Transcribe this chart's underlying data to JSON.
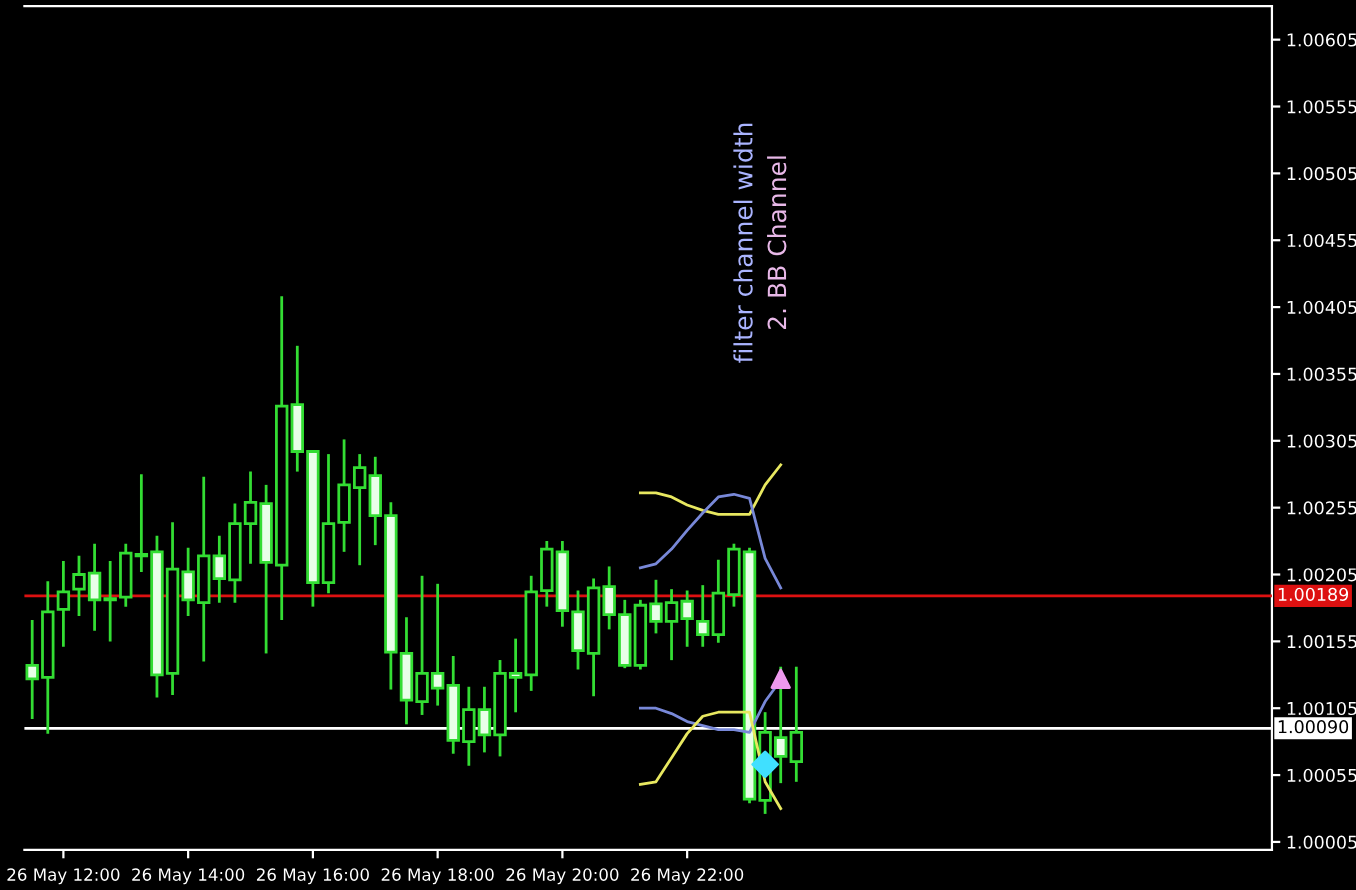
{
  "chart_data": {
    "type": "candlestick",
    "categories": [
      null,
      null,
      "26 May 12:00",
      null,
      null,
      null,
      null,
      null,
      null,
      null,
      "26 May 14:00",
      null,
      null,
      null,
      null,
      null,
      null,
      null,
      "26 May 16:00",
      null,
      null,
      null,
      null,
      null,
      null,
      null,
      "26 May 18:00",
      null,
      null,
      null,
      null,
      null,
      null,
      null,
      "26 May 20:00",
      null,
      null,
      null,
      null,
      null,
      null,
      null,
      "26 May 22:00",
      null,
      null,
      null,
      null,
      null,
      null,
      null,
      null,
      null,
      null,
      null,
      null,
      null,
      null,
      null,
      null,
      null,
      null,
      null,
      null,
      null,
      null,
      null,
      null,
      null,
      null,
      null,
      null,
      null,
      null,
      null,
      null,
      null,
      null,
      null,
      null,
      null
    ],
    "ohlc": [
      [
        1.00137,
        1.0017,
        1.00098,
        1.00127
      ],
      [
        1.00128,
        1.00199,
        1.00087,
        1.00177
      ],
      [
        1.00179,
        1.00214,
        1.00152,
        1.00192
      ],
      [
        1.00194,
        1.00218,
        1.00175,
        1.00205
      ],
      [
        1.00206,
        1.00227,
        1.00164,
        1.00186
      ],
      [
        1.00186,
        1.00214,
        1.00156,
        1.00187
      ],
      [
        1.00188,
        1.00227,
        1.00182,
        1.00221
      ],
      [
        1.0022,
        1.00279,
        1.00208,
        1.00219
      ],
      [
        1.00222,
        1.00233,
        1.00114,
        1.0013
      ],
      [
        1.00131,
        1.00243,
        1.00116,
        1.00209
      ],
      [
        1.00207,
        1.00224,
        1.00175,
        1.00186
      ],
      [
        1.00184,
        1.00277,
        1.00141,
        1.00219
      ],
      [
        1.00219,
        1.00233,
        1.00185,
        1.00202
      ],
      [
        1.00201,
        1.00257,
        1.00185,
        1.00243
      ],
      [
        1.00243,
        1.00281,
        1.00214,
        1.00259
      ],
      [
        1.00258,
        1.00271,
        1.00147,
        1.00214
      ],
      [
        1.00212,
        1.00412,
        1.00172,
        1.00331
      ],
      [
        1.00332,
        1.00375,
        1.00283,
        1.00297
      ],
      [
        1.00297,
        1.00297,
        1.00182,
        1.00199
      ],
      [
        1.00199,
        1.00294,
        1.00192,
        1.00243
      ],
      [
        1.00244,
        1.00305,
        1.00223,
        1.00272
      ],
      [
        1.0027,
        1.00294,
        1.00213,
        1.00285
      ],
      [
        1.00279,
        1.00292,
        1.00228,
        1.00249
      ],
      [
        1.00249,
        1.00258,
        1.0012,
        1.00147
      ],
      [
        1.00146,
        1.00172,
        1.00094,
        1.00111
      ],
      [
        1.0011,
        1.00203,
        1.00101,
        1.00131
      ],
      [
        1.00131,
        1.00197,
        1.00108,
        1.0012
      ],
      [
        1.00122,
        1.00143,
        1.00072,
        1.00081
      ],
      [
        1.0008,
        1.0012,
        1.00063,
        1.00104
      ],
      [
        1.00104,
        1.0012,
        1.00073,
        1.00085
      ],
      [
        1.00085,
        1.0014,
        1.0007,
        1.00131
      ],
      [
        1.00131,
        1.00156,
        1.00103,
        1.00128
      ],
      [
        1.0013,
        1.00203,
        1.00119,
        1.00192
      ],
      [
        1.00193,
        1.00229,
        1.00182,
        1.00224
      ],
      [
        1.00222,
        1.00229,
        1.00167,
        1.00178
      ],
      [
        1.00177,
        1.00192,
        1.00135,
        1.00148
      ],
      [
        1.00146,
        1.00201,
        1.00115,
        1.00195
      ],
      [
        1.00196,
        1.0021,
        1.00165,
        1.00175
      ],
      [
        1.00175,
        1.00185,
        1.00136,
        1.00137
      ],
      [
        1.00137,
        1.00185,
        1.00135,
        1.00182
      ],
      [
        1.00183,
        1.002,
        1.00162,
        1.0017
      ],
      [
        1.0017,
        1.00193,
        1.00142,
        1.00184
      ],
      [
        1.00185,
        1.00192,
        1.00152,
        1.00172
      ],
      [
        1.0017,
        1.00196,
        1.00152,
        1.0016
      ],
      [
        1.0016,
        1.00215,
        1.00155,
        1.00191
      ],
      [
        1.0019,
        1.00227,
        1.00182,
        1.00224
      ],
      [
        1.00222,
        1.00224,
        1.00035,
        1.00037
      ],
      [
        1.00036,
        1.00101,
        1.00027,
        1.00087
      ],
      [
        1.00083,
        1.00135,
        1.0005,
        1.00069
      ],
      [
        1.00065,
        1.00135,
        1.00051,
        1.00087
      ],
      null,
      null,
      null,
      null,
      null,
      null,
      null,
      null,
      null,
      null,
      null,
      null,
      null,
      null,
      null,
      null,
      null,
      null,
      null,
      null,
      null,
      null,
      null,
      null,
      null,
      null,
      null,
      null,
      null,
      null
    ],
    "color": "#33dd33",
    "series": [
      {
        "type": "line",
        "color": "#e8e860",
        "values": [
          null,
          null,
          null,
          null,
          null,
          null,
          null,
          null,
          null,
          null,
          null,
          null,
          null,
          null,
          null,
          null,
          null,
          null,
          null,
          null,
          null,
          null,
          null,
          null,
          null,
          null,
          null,
          null,
          null,
          null,
          null,
          null,
          null,
          null,
          null,
          null,
          null,
          null,
          null,
          1.00266,
          1.00266,
          1.00263,
          1.00257,
          1.00253,
          1.0025,
          1.0025,
          1.0025,
          1.00272,
          1.00287,
          null,
          null,
          null,
          null,
          null,
          null,
          null,
          null,
          null,
          null,
          null,
          null,
          null,
          null,
          null,
          null,
          null,
          null,
          null,
          null,
          null,
          null,
          null,
          null,
          null,
          null,
          null,
          null,
          null,
          null,
          null
        ]
      },
      {
        "type": "line",
        "color": "#7888d8",
        "values": [
          null,
          null,
          null,
          null,
          null,
          null,
          null,
          null,
          null,
          null,
          null,
          null,
          null,
          null,
          null,
          null,
          null,
          null,
          null,
          null,
          null,
          null,
          null,
          null,
          null,
          null,
          null,
          null,
          null,
          null,
          null,
          null,
          null,
          null,
          null,
          null,
          null,
          null,
          null,
          1.0021,
          1.00213,
          1.00224,
          1.00238,
          1.00251,
          1.00263,
          1.00265,
          1.00262,
          1.00217,
          1.00195,
          null,
          null,
          null,
          null,
          null,
          null,
          null,
          null,
          null,
          null,
          null,
          null,
          null,
          null,
          null,
          null,
          null,
          null,
          null,
          null,
          null,
          null,
          null,
          null,
          null,
          null,
          null,
          null,
          null,
          null,
          null
        ]
      },
      {
        "type": "line",
        "color": "#7888d8",
        "values": [
          null,
          null,
          null,
          null,
          null,
          null,
          null,
          null,
          null,
          null,
          null,
          null,
          null,
          null,
          null,
          null,
          null,
          null,
          null,
          null,
          null,
          null,
          null,
          null,
          null,
          null,
          null,
          null,
          null,
          null,
          null,
          null,
          null,
          null,
          null,
          null,
          null,
          null,
          null,
          1.00105,
          1.00105,
          1.00101,
          1.00095,
          1.00092,
          1.00089,
          1.00089,
          1.00087,
          1.0011,
          1.00126,
          null,
          null,
          null,
          null,
          null,
          null,
          null,
          null,
          null,
          null,
          null,
          null,
          null,
          null,
          null,
          null,
          null,
          null,
          null,
          null,
          null,
          null,
          null,
          null,
          null,
          null,
          null,
          null,
          null,
          null,
          null
        ]
      },
      {
        "type": "line",
        "color": "#e8e860",
        "values": [
          null,
          null,
          null,
          null,
          null,
          null,
          null,
          null,
          null,
          null,
          null,
          null,
          null,
          null,
          null,
          null,
          null,
          null,
          null,
          null,
          null,
          null,
          null,
          null,
          null,
          null,
          null,
          null,
          null,
          null,
          null,
          null,
          null,
          null,
          null,
          null,
          null,
          null,
          null,
          1.00048,
          1.0005,
          1.00068,
          1.00086,
          1.00099,
          1.00102,
          1.00102,
          1.00102,
          1.0005,
          1.0003,
          null,
          null,
          null,
          null,
          null,
          null,
          null,
          null,
          null,
          null,
          null,
          null,
          null,
          null,
          null,
          null,
          null,
          null,
          null,
          null,
          null,
          null,
          null,
          null,
          null,
          null,
          null,
          null,
          null,
          null,
          null
        ]
      },
      {
        "type": "scatter",
        "color": "#40e0ff",
        "marker": "diamond",
        "values": [
          null,
          null,
          null,
          null,
          null,
          null,
          null,
          null,
          null,
          null,
          null,
          null,
          null,
          null,
          null,
          null,
          null,
          null,
          null,
          null,
          null,
          null,
          null,
          null,
          null,
          null,
          null,
          null,
          null,
          null,
          null,
          null,
          null,
          null,
          null,
          null,
          null,
          null,
          null,
          null,
          null,
          null,
          null,
          null,
          null,
          null,
          null,
          1.00063,
          null,
          null,
          null,
          null,
          null,
          null,
          null,
          null,
          null,
          null,
          null,
          null,
          null,
          null,
          null,
          null,
          null,
          null,
          null,
          null,
          null,
          null,
          null,
          null,
          null,
          null,
          null,
          null,
          null,
          null,
          null,
          null
        ]
      },
      {
        "type": "scatter",
        "color": "#ee99ee",
        "marker": "triangle",
        "values": [
          null,
          null,
          null,
          null,
          null,
          null,
          null,
          null,
          null,
          null,
          null,
          null,
          null,
          null,
          null,
          null,
          null,
          null,
          null,
          null,
          null,
          null,
          null,
          null,
          null,
          null,
          null,
          null,
          null,
          null,
          null,
          null,
          null,
          null,
          null,
          null,
          null,
          null,
          null,
          null,
          null,
          null,
          null,
          null,
          null,
          null,
          null,
          null,
          1.00127,
          null,
          null,
          null,
          null,
          null,
          null,
          null,
          null,
          null,
          null,
          null,
          null,
          null,
          null,
          null,
          null,
          null,
          null,
          null,
          null,
          null,
          null,
          null,
          null,
          null,
          null,
          null,
          null,
          null,
          null,
          null
        ]
      }
    ],
    "ref_lines": [
      {
        "axis": "y",
        "value": 1.00189,
        "label": "1.00189",
        "color": "#dd1111",
        "line_style": "solid"
      },
      {
        "axis": "y",
        "value": 1.0009,
        "label": "1.00090",
        "color": "#ffffff",
        "line_style": "solid"
      }
    ],
    "annotations": [
      "filter channel width",
      "2. BB Channel"
    ],
    "ylim": [
      0.99999,
      1.0063
    ],
    "yticks": [
      1.00005,
      1.00055,
      1.00105,
      1.00155,
      1.00205,
      1.00255,
      1.00305,
      1.00355,
      1.00405,
      1.00455,
      1.00505,
      1.00555,
      1.00605
    ],
    "grid": false,
    "legend": false
  }
}
